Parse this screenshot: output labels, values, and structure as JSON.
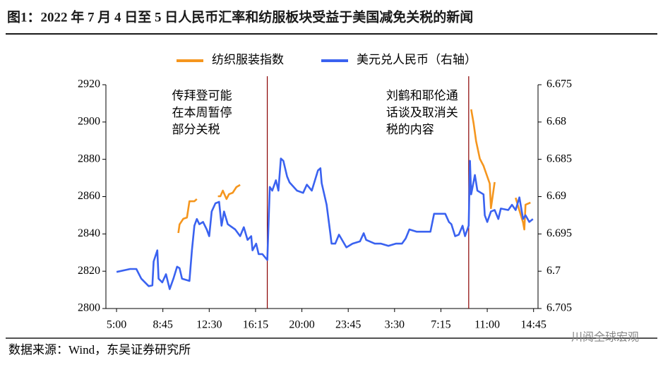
{
  "chart_data": {
    "type": "line",
    "title": "图1：2022 年 7 月 4 日至 5 日人民币汇率和纺服板块受益于美国减免关税的新闻",
    "source": "数据来源：Wind，东吴证券研究所",
    "watermark": "川阅全球宏观",
    "xlim": [
      -0.86,
      34.11
    ],
    "xticks": [
      {
        "value": 0,
        "label": "5:00"
      },
      {
        "value": 3.75,
        "label": "8:45"
      },
      {
        "value": 7.5,
        "label": "12:30"
      },
      {
        "value": 11.25,
        "label": "16:15"
      },
      {
        "value": 15,
        "label": "20:00"
      },
      {
        "value": 18.75,
        "label": "23:45"
      },
      {
        "value": 22.5,
        "label": "3:30"
      },
      {
        "value": 26.25,
        "label": "7:15"
      },
      {
        "value": 30,
        "label": "11:00"
      },
      {
        "value": 33.75,
        "label": "14:45"
      }
    ],
    "ylim": [
      2800,
      2920
    ],
    "yticks": [
      2800,
      2820,
      2840,
      2860,
      2880,
      2900,
      2920
    ],
    "y2lim": [
      6.705,
      6.675
    ],
    "y2ticks": [
      6.705,
      6.7,
      6.695,
      6.69,
      6.685,
      6.68,
      6.675
    ],
    "event_lines": {
      "color": "#8b0000",
      "x": [
        12.2,
        28.5
      ]
    },
    "annotations": [
      {
        "x": 12.2,
        "lines": [
          "传拜登可能",
          "在本周暂停",
          "部分关税"
        ]
      },
      {
        "x": 28.5,
        "lines": [
          "刘鹤和耶伦通",
          "话谈及取消关",
          "税的内容"
        ]
      }
    ],
    "series": [
      {
        "name": "纺织服装指数",
        "color": "#f5961e",
        "x": [
          5.0,
          5.1,
          5.4,
          5.7,
          5.9,
          6.3,
          6.5,
          7.0,
          8.2,
          8.4,
          8.6,
          8.9,
          9.1,
          9.4,
          9.7,
          10.0,
          20.0,
          28.7,
          28.9,
          29.1,
          29.4,
          29.7,
          30.0,
          30.2,
          30.3,
          30.6,
          31.5,
          32.3,
          32.6,
          32.9,
          33.0,
          33.1,
          33.5
        ],
        "values": [
          2840.5,
          2845.1,
          2848.1,
          2848.8,
          2857.5,
          2857.5,
          2858.7,
          null,
          2860.2,
          2860.2,
          2863.2,
          2858.7,
          2861.3,
          2862.1,
          2865.1,
          2866.3,
          null,
          2906.8,
          2899.2,
          2889.7,
          2880.3,
          2876.5,
          2870.8,
          2867.0,
          2853.8,
          2867.8,
          null,
          2859.4,
          2852.6,
          2846.2,
          2842.4,
          2855.7,
          2856.8
        ]
      },
      {
        "name": "美元兑人民币（右轴）",
        "color": "#3a62f0",
        "axis": "y2",
        "x": [
          0,
          1.1,
          1.6,
          2.0,
          2.6,
          2.9,
          3.0,
          3.3,
          3.4,
          3.7,
          4.0,
          4.3,
          4.6,
          4.9,
          5.1,
          5.3,
          5.9,
          6.1,
          6.3,
          6.5,
          6.7,
          7.0,
          7.3,
          7.5,
          7.7,
          8.0,
          8.3,
          8.5,
          8.7,
          9.0,
          9.6,
          10.0,
          10.3,
          10.6,
          10.9,
          11.0,
          11.3,
          11.5,
          11.8,
          12.2,
          12.4,
          12.6,
          12.9,
          13.1,
          13.3,
          13.5,
          13.8,
          14.0,
          14.6,
          15.1,
          15.4,
          15.8,
          16.3,
          16.5,
          16.6,
          17.0,
          17.3,
          17.4,
          17.7,
          18.0,
          18.6,
          19.1,
          19.7,
          20.0,
          20.2,
          20.9,
          21.4,
          22.0,
          22.6,
          23.1,
          23.4,
          23.7,
          24.3,
          24.9,
          25.4,
          25.7,
          26.6,
          26.9,
          27.1,
          27.4,
          27.7,
          28.0,
          28.2,
          28.5,
          28.6,
          28.7,
          29.0,
          29.2,
          29.7,
          29.8,
          30.0,
          30.3,
          30.6,
          30.9,
          31.1,
          31.7,
          32.0,
          32.3,
          32.6,
          32.9,
          33.1,
          33.4,
          33.7
        ],
        "values": [
          6.7001,
          6.6997,
          6.6997,
          6.701,
          6.702,
          6.7019,
          6.6987,
          6.6972,
          6.701,
          6.7015,
          6.7004,
          6.7024,
          6.701,
          6.6994,
          6.6996,
          6.701,
          6.7013,
          6.6972,
          6.6939,
          6.693,
          6.6937,
          6.6934,
          6.6944,
          6.6953,
          6.692,
          6.6909,
          6.6907,
          6.6939,
          6.692,
          6.6937,
          6.6944,
          6.6953,
          6.6941,
          6.6958,
          6.6953,
          6.6972,
          6.6963,
          6.6977,
          6.6977,
          6.6985,
          6.6887,
          6.6892,
          6.6878,
          6.6892,
          6.6849,
          6.6852,
          6.6873,
          6.6881,
          6.6892,
          6.6895,
          6.6884,
          6.6892,
          6.6865,
          6.6862,
          6.6882,
          6.6911,
          6.6949,
          6.6963,
          6.6963,
          6.6951,
          6.6968,
          6.6963,
          6.696,
          6.6949,
          6.6958,
          6.6963,
          6.6963,
          6.6966,
          6.6963,
          6.6963,
          6.6956,
          6.6944,
          6.6947,
          6.6947,
          6.6947,
          6.6923,
          6.6923,
          6.6934,
          6.6937,
          6.6953,
          6.6951,
          6.6939,
          6.6953,
          6.6939,
          6.6852,
          6.6897,
          6.6871,
          6.6892,
          6.6897,
          6.6925,
          6.6934,
          6.692,
          6.6918,
          6.693,
          6.6916,
          6.6918,
          6.6911,
          6.6918,
          6.6901,
          6.693,
          6.6925,
          6.6934,
          6.693
        ]
      }
    ]
  }
}
